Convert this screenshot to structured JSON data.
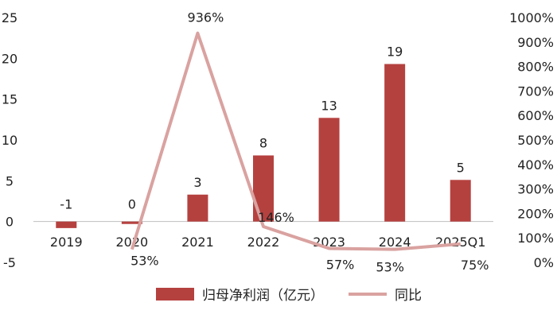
{
  "chart_data": {
    "type": "bar",
    "categories": [
      "2019",
      "2020",
      "2021",
      "2022",
      "2023",
      "2024",
      "2025Q1"
    ],
    "series": [
      {
        "name": "归母净利润（亿元）",
        "type": "bar",
        "axis": "left",
        "values": [
          -0.8,
          -0.3,
          3.3,
          8.1,
          12.7,
          19.3,
          5.1
        ],
        "labels": [
          "-1",
          "0",
          "3",
          "8",
          "13",
          "19",
          "5"
        ]
      },
      {
        "name": "同比",
        "type": "line",
        "axis": "right",
        "values": [
          null,
          53,
          936,
          146,
          57,
          53,
          75
        ],
        "labels": [
          "",
          "53%",
          "936%",
          "146%",
          "57%",
          "53%",
          "75%"
        ]
      }
    ],
    "y_left": {
      "ylim": [
        -5,
        25
      ],
      "ticks": [
        "25",
        "20",
        "15",
        "10",
        "5",
        "0",
        "-5"
      ]
    },
    "y_right": {
      "ylim": [
        0,
        1000
      ],
      "ticks": [
        "1000%",
        "900%",
        "800%",
        "700%",
        "600%",
        "500%",
        "400%",
        "300%",
        "200%",
        "100%",
        "0%"
      ]
    },
    "legend": "bottom",
    "grid": false,
    "colors": {
      "bar": "#b5413f",
      "line": "#d9a2a0"
    }
  }
}
